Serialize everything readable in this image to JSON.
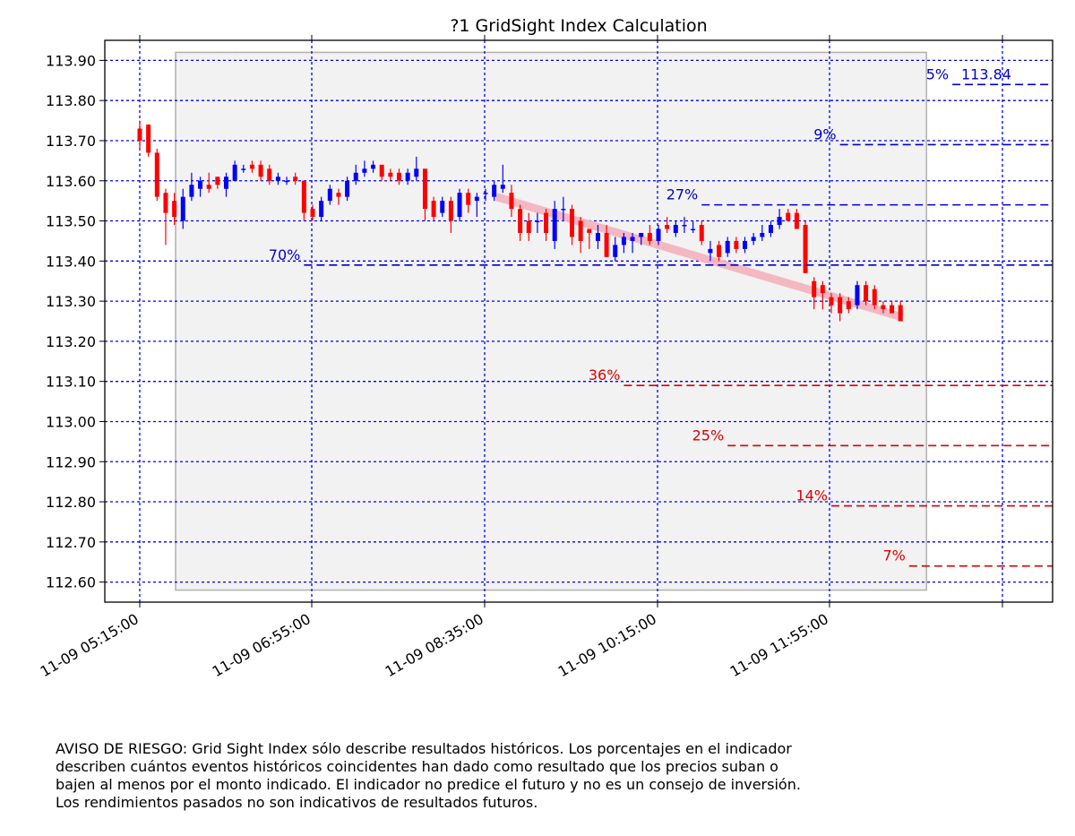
{
  "chart_data": {
    "type": "candlestick",
    "title": "?1 GridSight Index Calculation",
    "xlabel": "",
    "ylabel": "",
    "ylim": [
      112.55,
      113.95
    ],
    "x_tick_labels": [
      "11-09 05:15:00",
      "11-09 06:55:00",
      "11-09 08:35:00",
      "11-09 10:15:00",
      "11-09 11:55:00"
    ],
    "y_tick_labels": [
      "112.60",
      "112.70",
      "112.80",
      "112.90",
      "113.00",
      "113.10",
      "113.20",
      "113.30",
      "113.40",
      "113.50",
      "113.60",
      "113.70",
      "113.80",
      "113.90"
    ],
    "grid": true,
    "candle_colors": {
      "up": "#0000ff",
      "down": "#ff0000"
    },
    "candles": [
      {
        "t": "05:15",
        "o": 113.73,
        "h": 113.75,
        "l": 113.68,
        "c": 113.7
      },
      {
        "t": "05:20",
        "o": 113.74,
        "h": 113.74,
        "l": 113.66,
        "c": 113.67
      },
      {
        "t": "05:25",
        "o": 113.67,
        "h": 113.68,
        "l": 113.55,
        "c": 113.56
      },
      {
        "t": "05:30",
        "o": 113.57,
        "h": 113.58,
        "l": 113.44,
        "c": 113.52
      },
      {
        "t": "05:35",
        "o": 113.55,
        "h": 113.57,
        "l": 113.49,
        "c": 113.51
      },
      {
        "t": "05:40",
        "o": 113.5,
        "h": 113.58,
        "l": 113.48,
        "c": 113.56
      },
      {
        "t": "05:45",
        "o": 113.56,
        "h": 113.62,
        "l": 113.55,
        "c": 113.59
      },
      {
        "t": "05:50",
        "o": 113.58,
        "h": 113.61,
        "l": 113.56,
        "c": 113.6
      },
      {
        "t": "05:55",
        "o": 113.59,
        "h": 113.62,
        "l": 113.57,
        "c": 113.58
      },
      {
        "t": "06:00",
        "o": 113.61,
        "h": 113.61,
        "l": 113.58,
        "c": 113.59
      },
      {
        "t": "06:05",
        "o": 113.58,
        "h": 113.62,
        "l": 113.56,
        "c": 113.61
      },
      {
        "t": "06:10",
        "o": 113.6,
        "h": 113.65,
        "l": 113.6,
        "c": 113.64
      },
      {
        "t": "06:15",
        "o": 113.63,
        "h": 113.64,
        "l": 113.62,
        "c": 113.63
      },
      {
        "t": "06:20",
        "o": 113.64,
        "h": 113.65,
        "l": 113.62,
        "c": 113.63
      },
      {
        "t": "06:25",
        "o": 113.64,
        "h": 113.65,
        "l": 113.6,
        "c": 113.61
      },
      {
        "t": "06:30",
        "o": 113.63,
        "h": 113.64,
        "l": 113.59,
        "c": 113.6
      },
      {
        "t": "06:35",
        "o": 113.6,
        "h": 113.62,
        "l": 113.59,
        "c": 113.61
      },
      {
        "t": "06:40",
        "o": 113.6,
        "h": 113.61,
        "l": 113.59,
        "c": 113.6
      },
      {
        "t": "06:45",
        "o": 113.61,
        "h": 113.62,
        "l": 113.59,
        "c": 113.6
      },
      {
        "t": "06:50",
        "o": 113.6,
        "h": 113.6,
        "l": 113.5,
        "c": 113.52
      },
      {
        "t": "06:55",
        "o": 113.53,
        "h": 113.54,
        "l": 113.5,
        "c": 113.51
      },
      {
        "t": "07:00",
        "o": 113.51,
        "h": 113.56,
        "l": 113.5,
        "c": 113.55
      },
      {
        "t": "07:05",
        "o": 113.55,
        "h": 113.59,
        "l": 113.54,
        "c": 113.58
      },
      {
        "t": "07:10",
        "o": 113.57,
        "h": 113.58,
        "l": 113.54,
        "c": 113.56
      },
      {
        "t": "07:15",
        "o": 113.56,
        "h": 113.61,
        "l": 113.55,
        "c": 113.6
      },
      {
        "t": "07:20",
        "o": 113.6,
        "h": 113.64,
        "l": 113.59,
        "c": 113.62
      },
      {
        "t": "07:25",
        "o": 113.62,
        "h": 113.65,
        "l": 113.61,
        "c": 113.63
      },
      {
        "t": "07:30",
        "o": 113.63,
        "h": 113.65,
        "l": 113.62,
        "c": 113.64
      },
      {
        "t": "07:35",
        "o": 113.64,
        "h": 113.64,
        "l": 113.6,
        "c": 113.61
      },
      {
        "t": "07:40",
        "o": 113.62,
        "h": 113.63,
        "l": 113.6,
        "c": 113.61
      },
      {
        "t": "07:45",
        "o": 113.62,
        "h": 113.63,
        "l": 113.59,
        "c": 113.6
      },
      {
        "t": "07:50",
        "o": 113.6,
        "h": 113.63,
        "l": 113.59,
        "c": 113.62
      },
      {
        "t": "07:55",
        "o": 113.61,
        "h": 113.66,
        "l": 113.6,
        "c": 113.63
      },
      {
        "t": "08:00",
        "o": 113.63,
        "h": 113.63,
        "l": 113.5,
        "c": 113.53
      },
      {
        "t": "08:05",
        "o": 113.55,
        "h": 113.56,
        "l": 113.5,
        "c": 113.51
      },
      {
        "t": "08:10",
        "o": 113.52,
        "h": 113.56,
        "l": 113.51,
        "c": 113.55
      },
      {
        "t": "08:15",
        "o": 113.55,
        "h": 113.56,
        "l": 113.47,
        "c": 113.5
      },
      {
        "t": "08:20",
        "o": 113.51,
        "h": 113.58,
        "l": 113.5,
        "c": 113.57
      },
      {
        "t": "08:25",
        "o": 113.57,
        "h": 113.58,
        "l": 113.52,
        "c": 113.54
      },
      {
        "t": "08:30",
        "o": 113.55,
        "h": 113.57,
        "l": 113.51,
        "c": 113.56
      },
      {
        "t": "08:35",
        "o": 113.57,
        "h": 113.58,
        "l": 113.55,
        "c": 113.57
      },
      {
        "t": "08:40",
        "o": 113.56,
        "h": 113.6,
        "l": 113.55,
        "c": 113.59
      },
      {
        "t": "08:45",
        "o": 113.58,
        "h": 113.64,
        "l": 113.57,
        "c": 113.59
      },
      {
        "t": "08:50",
        "o": 113.57,
        "h": 113.59,
        "l": 113.51,
        "c": 113.53
      },
      {
        "t": "08:55",
        "o": 113.53,
        "h": 113.54,
        "l": 113.45,
        "c": 113.47
      },
      {
        "t": "09:00",
        "o": 113.5,
        "h": 113.52,
        "l": 113.45,
        "c": 113.47
      },
      {
        "t": "09:05",
        "o": 113.5,
        "h": 113.52,
        "l": 113.47,
        "c": 113.5
      },
      {
        "t": "09:10",
        "o": 113.52,
        "h": 113.53,
        "l": 113.45,
        "c": 113.47
      },
      {
        "t": "09:15",
        "o": 113.45,
        "h": 113.55,
        "l": 113.43,
        "c": 113.53
      },
      {
        "t": "09:20",
        "o": 113.53,
        "h": 113.56,
        "l": 113.5,
        "c": 113.53
      },
      {
        "t": "09:25",
        "o": 113.53,
        "h": 113.54,
        "l": 113.44,
        "c": 113.46
      },
      {
        "t": "09:30",
        "o": 113.5,
        "h": 113.51,
        "l": 113.42,
        "c": 113.45
      },
      {
        "t": "09:35",
        "o": 113.48,
        "h": 113.48,
        "l": 113.43,
        "c": 113.47
      },
      {
        "t": "09:40",
        "o": 113.45,
        "h": 113.49,
        "l": 113.43,
        "c": 113.47
      },
      {
        "t": "09:45",
        "o": 113.47,
        "h": 113.49,
        "l": 113.41,
        "c": 113.41
      },
      {
        "t": "09:50",
        "o": 113.41,
        "h": 113.46,
        "l": 113.4,
        "c": 113.44
      },
      {
        "t": "09:55",
        "o": 113.44,
        "h": 113.47,
        "l": 113.42,
        "c": 113.46
      },
      {
        "t": "10:00",
        "o": 113.45,
        "h": 113.47,
        "l": 113.42,
        "c": 113.46
      },
      {
        "t": "10:05",
        "o": 113.46,
        "h": 113.47,
        "l": 113.44,
        "c": 113.47
      },
      {
        "t": "10:10",
        "o": 113.47,
        "h": 113.49,
        "l": 113.44,
        "c": 113.45
      },
      {
        "t": "10:15",
        "o": 113.45,
        "h": 113.49,
        "l": 113.44,
        "c": 113.48
      },
      {
        "t": "10:20",
        "o": 113.49,
        "h": 113.51,
        "l": 113.47,
        "c": 113.48
      },
      {
        "t": "10:25",
        "o": 113.47,
        "h": 113.5,
        "l": 113.46,
        "c": 113.49
      },
      {
        "t": "10:30",
        "o": 113.49,
        "h": 113.51,
        "l": 113.47,
        "c": 113.49
      },
      {
        "t": "10:35",
        "o": 113.48,
        "h": 113.5,
        "l": 113.47,
        "c": 113.48
      },
      {
        "t": "10:40",
        "o": 113.49,
        "h": 113.5,
        "l": 113.44,
        "c": 113.45
      },
      {
        "t": "10:45",
        "o": 113.42,
        "h": 113.45,
        "l": 113.4,
        "c": 113.43
      },
      {
        "t": "10:50",
        "o": 113.44,
        "h": 113.45,
        "l": 113.4,
        "c": 113.41
      },
      {
        "t": "10:55",
        "o": 113.42,
        "h": 113.46,
        "l": 113.41,
        "c": 113.45
      },
      {
        "t": "11:00",
        "o": 113.45,
        "h": 113.46,
        "l": 113.42,
        "c": 113.43
      },
      {
        "t": "11:05",
        "o": 113.43,
        "h": 113.46,
        "l": 113.42,
        "c": 113.45
      },
      {
        "t": "11:10",
        "o": 113.45,
        "h": 113.47,
        "l": 113.44,
        "c": 113.46
      },
      {
        "t": "11:15",
        "o": 113.46,
        "h": 113.49,
        "l": 113.45,
        "c": 113.47
      },
      {
        "t": "11:20",
        "o": 113.47,
        "h": 113.5,
        "l": 113.46,
        "c": 113.49
      },
      {
        "t": "11:25",
        "o": 113.49,
        "h": 113.53,
        "l": 113.48,
        "c": 113.51
      },
      {
        "t": "11:30",
        "o": 113.52,
        "h": 113.53,
        "l": 113.5,
        "c": 113.5
      },
      {
        "t": "11:35",
        "o": 113.52,
        "h": 113.53,
        "l": 113.48,
        "c": 113.48
      },
      {
        "t": "11:40",
        "o": 113.49,
        "h": 113.5,
        "l": 113.37,
        "c": 113.37
      },
      {
        "t": "11:45",
        "o": 113.35,
        "h": 113.36,
        "l": 113.28,
        "c": 113.31
      },
      {
        "t": "11:50",
        "o": 113.34,
        "h": 113.35,
        "l": 113.28,
        "c": 113.32
      },
      {
        "t": "11:55",
        "o": 113.31,
        "h": 113.32,
        "l": 113.27,
        "c": 113.29
      },
      {
        "t": "12:00",
        "o": 113.31,
        "h": 113.32,
        "l": 113.25,
        "c": 113.27
      },
      {
        "t": "12:05",
        "o": 113.3,
        "h": 113.31,
        "l": 113.27,
        "c": 113.28
      },
      {
        "t": "12:10",
        "o": 113.29,
        "h": 113.35,
        "l": 113.28,
        "c": 113.34
      },
      {
        "t": "12:15",
        "o": 113.34,
        "h": 113.35,
        "l": 113.29,
        "c": 113.3
      },
      {
        "t": "12:20",
        "o": 113.33,
        "h": 113.34,
        "l": 113.28,
        "c": 113.29
      },
      {
        "t": "12:25",
        "o": 113.29,
        "h": 113.3,
        "l": 113.27,
        "c": 113.28
      },
      {
        "t": "12:30",
        "o": 113.29,
        "h": 113.3,
        "l": 113.27,
        "c": 113.27
      },
      {
        "t": "12:35",
        "o": 113.29,
        "h": 113.3,
        "l": 113.25,
        "c": 113.25
      }
    ],
    "trend_line": {
      "color": "#f4b5c0",
      "from": {
        "t": "08:35",
        "y": 113.56
      },
      "to": {
        "t": "12:35",
        "y": 113.26
      }
    },
    "shaded_region": {
      "from": "05:35",
      "to": "12:35",
      "ymin": 112.58,
      "ymax": 113.92
    },
    "levels": [
      {
        "label": "5%",
        "value_label": "113.84",
        "y": 113.84,
        "from": "13:05",
        "color": "#0000cc"
      },
      {
        "label": "9%",
        "y": 113.69,
        "from": "12:00",
        "color": "#0000cc"
      },
      {
        "label": "27%",
        "y": 113.54,
        "from": "10:40",
        "color": "#0000cc"
      },
      {
        "label": "70%",
        "y": 113.39,
        "from": "06:50",
        "color": "#0000cc"
      },
      {
        "label": "36%",
        "y": 113.09,
        "from": "09:55",
        "color": "#dd0000"
      },
      {
        "label": "25%",
        "y": 112.94,
        "from": "10:55",
        "color": "#dd0000"
      },
      {
        "label": "14%",
        "y": 112.79,
        "from": "11:55",
        "color": "#dd0000"
      },
      {
        "label": "7%",
        "y": 112.64,
        "from": "12:40",
        "color": "#dd0000"
      }
    ]
  },
  "disclaimer": {
    "lines": [
      "AVISO DE RIESGO: Grid Sight Index sólo describe resultados históricos. Los porcentajes en el indicador",
      "describen cuántos eventos históricos coincidentes han dado como resultado que los precios suban o",
      "bajen al menos por el monto indicado. El indicador no predice el futuro y no es un consejo de inversión.",
      "Los rendimientos pasados no son indicativos de resultados futuros."
    ]
  }
}
